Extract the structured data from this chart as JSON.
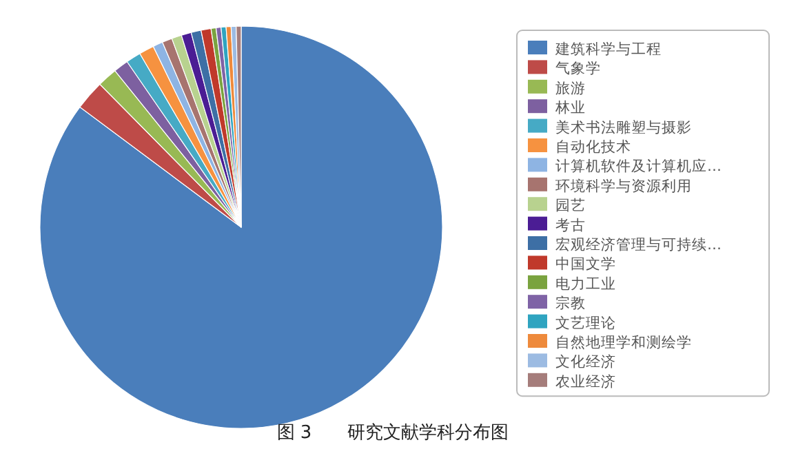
{
  "chart_data": {
    "type": "pie",
    "title": "图 3　　研究文献学科分布图",
    "legend": "right",
    "categories": [
      "建筑科学与工程",
      "气象学",
      "旅游",
      "林业",
      "美术书法雕塑与摄影",
      "自动化技术",
      "计算机软件及计算机应…",
      "环境科学与资源利用",
      "园艺",
      "考古",
      "宏观经济管理与可持续…",
      "中国文学",
      "电力工业",
      "宗教",
      "文艺理论",
      "自然地理学和测绘学",
      "文化经济",
      "农业经济"
    ],
    "values": [
      85.2,
      2.4,
      1.6,
      1.2,
      1.2,
      1.2,
      0.8,
      0.8,
      0.8,
      0.8,
      0.8,
      0.8,
      0.4,
      0.4,
      0.4,
      0.4,
      0.4,
      0.4
    ],
    "colors": [
      "#4a7ebb",
      "#be4b48",
      "#98b954",
      "#7d60a0",
      "#46aac5",
      "#f69240",
      "#8eb4e3",
      "#a7746f",
      "#b8d28f",
      "#4b1d94",
      "#3d6fa5",
      "#c0392b",
      "#7aa33f",
      "#7f63a6",
      "#2fa4c0",
      "#ee8a3c",
      "#9cbbe2",
      "#a57d7b"
    ]
  }
}
